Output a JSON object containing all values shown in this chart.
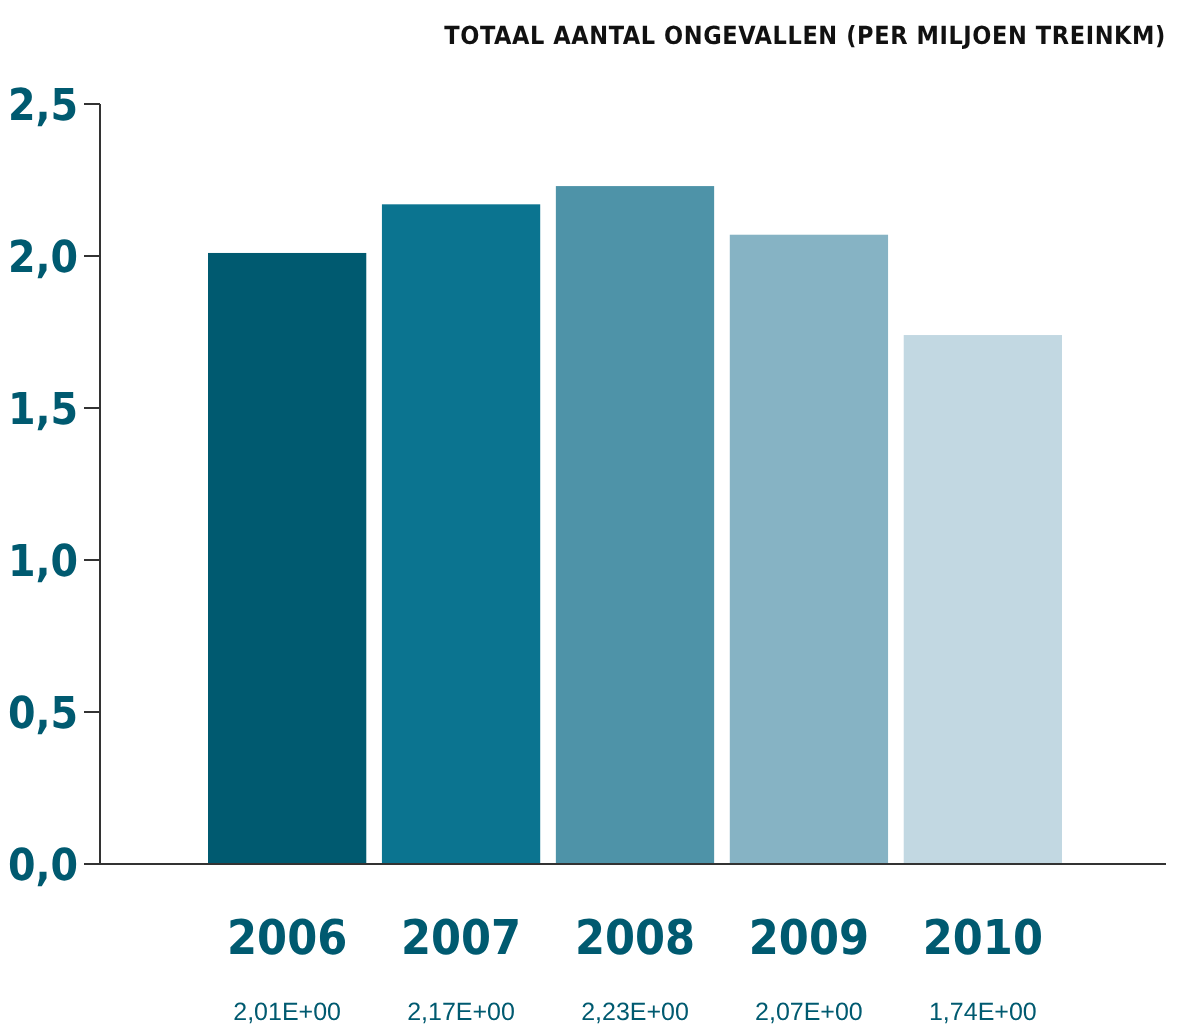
{
  "chart_data": {
    "type": "bar",
    "title": "TOTAAL AANTAL ONGEVALLEN (PER MILJOEN TREINKM)",
    "categories": [
      "2006",
      "2007",
      "2008",
      "2009",
      "2010"
    ],
    "values": [
      2.01,
      2.17,
      2.23,
      2.07,
      1.74
    ],
    "colors": [
      "#005a70",
      "#0b7490",
      "#4e93a8",
      "#86b3c4",
      "#c2d8e2"
    ],
    "value_labels": [
      "2,01E+00",
      "2,17E+00",
      "2,23E+00",
      "2,07E+00",
      "1,74E+00"
    ],
    "ylim": [
      0,
      2.5
    ],
    "yticks": [
      {
        "value": 0,
        "label": "0,0"
      },
      {
        "value": 0.5,
        "label": "0,5"
      },
      {
        "value": 1,
        "label": "1,0"
      },
      {
        "value": 1.5,
        "label": "1,5"
      },
      {
        "value": 2,
        "label": "2,0"
      },
      {
        "value": 2.5,
        "label": "2,5"
      }
    ],
    "grid": false
  }
}
